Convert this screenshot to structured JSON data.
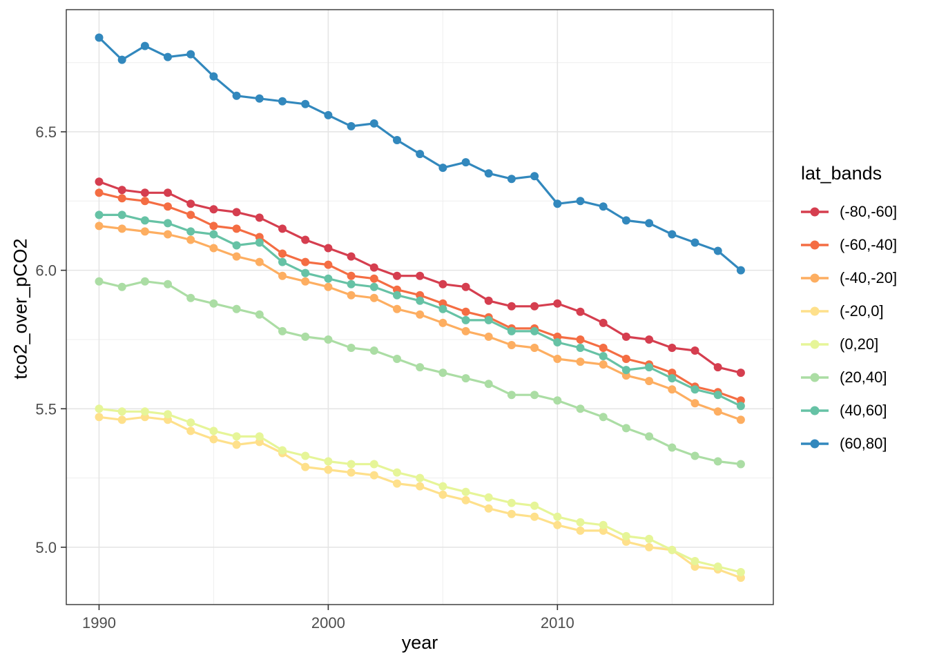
{
  "figure": {
    "y_axis_title": "tco2_over_pCO2",
    "x_axis_title": "year",
    "panel_background": "#FFFFFF",
    "panel_border_color": "#333333",
    "grid_major_color": "#E5E5E5",
    "grid_minor_color": "#F0F0F0",
    "tick_mark_color": "#333333",
    "tick_label_color": "#4D4D4D"
  },
  "legend": {
    "title": "lat_bands",
    "entries": [
      {
        "label": "(-80,-60]",
        "color": "#D53E4F"
      },
      {
        "label": "(-60,-40]",
        "color": "#F46D43"
      },
      {
        "label": "(-40,-20]",
        "color": "#FDAE61"
      },
      {
        "label": "(-20,0]",
        "color": "#FEE08B"
      },
      {
        "label": "(0,20]",
        "color": "#E6F598"
      },
      {
        "label": "(20,40]",
        "color": "#ABDDA4"
      },
      {
        "label": "(40,60]",
        "color": "#66C2A5"
      },
      {
        "label": "(60,80]",
        "color": "#3288BD"
      }
    ]
  },
  "chart_data": {
    "type": "line",
    "title": "",
    "xlabel": "year",
    "ylabel": "tco2_over_pCO2",
    "legend_title": "lat_bands",
    "legend_position": "right",
    "grid": true,
    "xlim": [
      1988.57,
      2019.42
    ],
    "ylim": [
      4.793,
      6.941
    ],
    "x_ticks": [
      1990,
      2000,
      2010
    ],
    "x_minor_ticks": [
      1995,
      2005,
      2015
    ],
    "y_ticks": [
      5.0,
      5.5,
      6.0,
      6.5
    ],
    "y_tick_labels": [
      "5.0",
      "5.5",
      "6.0",
      "6.5"
    ],
    "y_minor_ticks": [
      5.25,
      5.75,
      6.25,
      6.75
    ],
    "x": [
      1990,
      1991,
      1992,
      1993,
      1994,
      1995,
      1996,
      1997,
      1998,
      1999,
      2000,
      2001,
      2002,
      2003,
      2004,
      2005,
      2006,
      2007,
      2008,
      2009,
      2010,
      2011,
      2012,
      2013,
      2014,
      2015,
      2016,
      2017,
      2018
    ],
    "series": [
      {
        "name": "(-80,-60]",
        "color": "#D53E4F",
        "values": [
          6.32,
          6.29,
          6.28,
          6.28,
          6.24,
          6.22,
          6.21,
          6.19,
          6.15,
          6.11,
          6.08,
          6.05,
          6.01,
          5.98,
          5.98,
          5.95,
          5.94,
          5.89,
          5.87,
          5.87,
          5.88,
          5.85,
          5.81,
          5.76,
          5.75,
          5.72,
          5.71,
          5.65,
          5.63
        ]
      },
      {
        "name": "(-60,-40]",
        "color": "#F46D43",
        "values": [
          6.28,
          6.26,
          6.25,
          6.23,
          6.2,
          6.16,
          6.15,
          6.12,
          6.06,
          6.03,
          6.02,
          5.98,
          5.97,
          5.93,
          5.91,
          5.88,
          5.85,
          5.83,
          5.79,
          5.79,
          5.76,
          5.75,
          5.72,
          5.68,
          5.66,
          5.63,
          5.58,
          5.56,
          5.53
        ]
      },
      {
        "name": "(-40,-20]",
        "color": "#FDAE61",
        "values": [
          6.16,
          6.15,
          6.14,
          6.13,
          6.11,
          6.08,
          6.05,
          6.03,
          5.98,
          5.96,
          5.94,
          5.91,
          5.9,
          5.86,
          5.84,
          5.81,
          5.78,
          5.76,
          5.73,
          5.72,
          5.68,
          5.67,
          5.66,
          5.62,
          5.6,
          5.57,
          5.52,
          5.49,
          5.46
        ]
      },
      {
        "name": "(-20,0]",
        "color": "#FEE08B",
        "values": [
          5.47,
          5.46,
          5.47,
          5.46,
          5.42,
          5.39,
          5.37,
          5.38,
          5.34,
          5.29,
          5.28,
          5.27,
          5.26,
          5.23,
          5.22,
          5.19,
          5.17,
          5.14,
          5.12,
          5.11,
          5.08,
          5.06,
          5.06,
          5.02,
          5.0,
          4.99,
          4.93,
          4.92,
          4.89
        ]
      },
      {
        "name": "(0,20]",
        "color": "#E6F598",
        "values": [
          5.5,
          5.49,
          5.49,
          5.48,
          5.45,
          5.42,
          5.4,
          5.4,
          5.35,
          5.33,
          5.31,
          5.3,
          5.3,
          5.27,
          5.25,
          5.22,
          5.2,
          5.18,
          5.16,
          5.15,
          5.11,
          5.09,
          5.08,
          5.04,
          5.03,
          4.99,
          4.95,
          4.93,
          4.91
        ]
      },
      {
        "name": "(20,40]",
        "color": "#ABDDA4",
        "values": [
          5.96,
          5.94,
          5.96,
          5.95,
          5.9,
          5.88,
          5.86,
          5.84,
          5.78,
          5.76,
          5.75,
          5.72,
          5.71,
          5.68,
          5.65,
          5.63,
          5.61,
          5.59,
          5.55,
          5.55,
          5.53,
          5.5,
          5.47,
          5.43,
          5.4,
          5.36,
          5.33,
          5.31,
          5.3
        ]
      },
      {
        "name": "(40,60]",
        "color": "#66C2A5",
        "values": [
          6.2,
          6.2,
          6.18,
          6.17,
          6.14,
          6.13,
          6.09,
          6.1,
          6.03,
          5.99,
          5.97,
          5.95,
          5.94,
          5.91,
          5.89,
          5.86,
          5.82,
          5.82,
          5.78,
          5.78,
          5.74,
          5.72,
          5.69,
          5.64,
          5.65,
          5.61,
          5.57,
          5.55,
          5.51
        ]
      },
      {
        "name": "(60,80]",
        "color": "#3288BD",
        "values": [
          6.84,
          6.76,
          6.81,
          6.77,
          6.78,
          6.7,
          6.63,
          6.62,
          6.61,
          6.6,
          6.56,
          6.52,
          6.53,
          6.47,
          6.42,
          6.37,
          6.39,
          6.35,
          6.33,
          6.34,
          6.24,
          6.25,
          6.23,
          6.18,
          6.17,
          6.13,
          6.1,
          6.07,
          6.0
        ]
      }
    ]
  }
}
